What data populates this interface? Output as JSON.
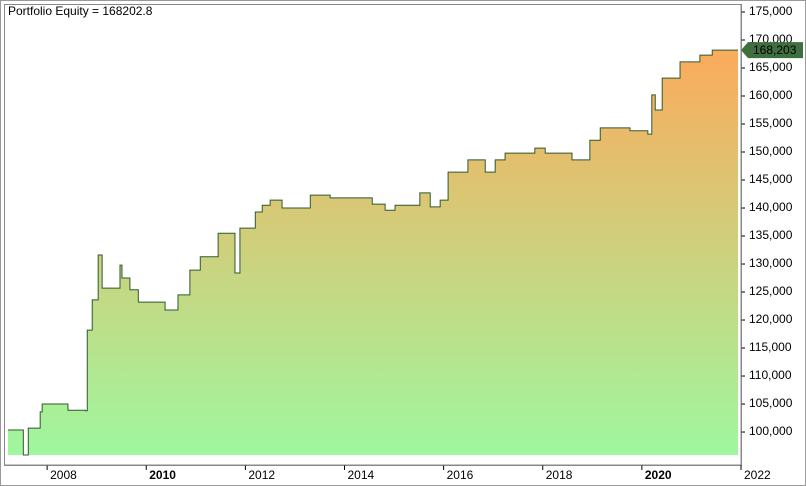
{
  "chart_data": {
    "type": "step-area",
    "title": "Portfolio Equity = 168202.8",
    "x": [
      2007.21,
      2007.5,
      2007.52,
      2007.62,
      2007.86,
      2007.9,
      2008.42,
      2008.77,
      2008.81,
      2008.91,
      2009.03,
      2009.11,
      2009.47,
      2009.51,
      2009.67,
      2009.84,
      2010.38,
      2010.64,
      2010.88,
      2011.09,
      2011.45,
      2011.79,
      2011.89,
      2012.2,
      2012.34,
      2012.5,
      2012.74,
      2013.31,
      2013.71,
      2014.56,
      2014.82,
      2015.02,
      2015.52,
      2015.73,
      2015.93,
      2016.09,
      2016.49,
      2016.84,
      2017.04,
      2017.24,
      2017.84,
      2018.05,
      2018.59,
      2018.95,
      2019.16,
      2019.76,
      2020.12,
      2020.2,
      2020.27,
      2020.41,
      2020.77,
      2021.17,
      2021.42,
      2021.94
    ],
    "series": [
      {
        "name": "Portfolio Equity",
        "color": "#2e5a2e",
        "values": [
          100360,
          100360,
          95900,
          100700,
          103600,
          105000,
          103900,
          103800,
          118200,
          123600,
          131600,
          125700,
          129800,
          127500,
          125400,
          123200,
          121800,
          124500,
          128900,
          131300,
          135500,
          128400,
          136400,
          139300,
          140500,
          141400,
          140000,
          142300,
          141800,
          140700,
          139600,
          140500,
          142700,
          140200,
          141400,
          146400,
          148600,
          146400,
          148600,
          149800,
          150700,
          149800,
          148600,
          152100,
          154300,
          153800,
          153200,
          160200,
          157500,
          163200,
          166100,
          167300,
          168202.8,
          168202.8
        ],
        "value_labels": [
          null,
          null,
          null,
          null,
          null,
          null,
          null,
          null,
          null,
          null,
          null,
          null,
          null,
          null,
          null,
          null,
          null,
          null,
          null,
          null,
          null,
          null,
          null,
          null,
          null,
          null,
          null,
          null,
          null,
          null,
          null,
          null,
          null,
          null,
          null,
          null,
          null,
          null,
          null,
          null,
          null,
          null,
          null,
          null,
          null,
          null,
          null,
          null,
          null,
          null,
          null,
          null,
          null,
          "168,203"
        ]
      }
    ],
    "fill_top": "#fbab5c",
    "fill_bottom": "#9ff79f",
    "label_color": "#3f6f3f",
    "xlim": [
      2007.15,
      2022
    ],
    "xticks": [
      2008,
      2010,
      2012,
      2014,
      2016,
      2018,
      2020,
      2022
    ],
    "bold_xticks": [
      2010,
      2020
    ],
    "ylim": [
      95900,
      176250
    ],
    "yticks": [
      {
        "value": 100000,
        "label": "100,000"
      },
      {
        "value": 105000,
        "label": "105,000"
      },
      {
        "value": 110000,
        "label": "110,000"
      },
      {
        "value": 115000,
        "label": "115,000"
      },
      {
        "value": 120000,
        "label": "120,000"
      },
      {
        "value": 125000,
        "label": "125,000"
      },
      {
        "value": 130000,
        "label": "130,000"
      },
      {
        "value": 135000,
        "label": "135,000"
      },
      {
        "value": 140000,
        "label": "140,000"
      },
      {
        "value": 145000,
        "label": "145,000"
      },
      {
        "value": 150000,
        "label": "150,000"
      },
      {
        "value": 155000,
        "label": "155,000"
      },
      {
        "value": 160000,
        "label": "160,000"
      },
      {
        "value": 165000,
        "label": "165,000"
      },
      {
        "value": 170000,
        "label": "170,000"
      },
      {
        "value": 175000,
        "label": "175,000"
      }
    ]
  }
}
